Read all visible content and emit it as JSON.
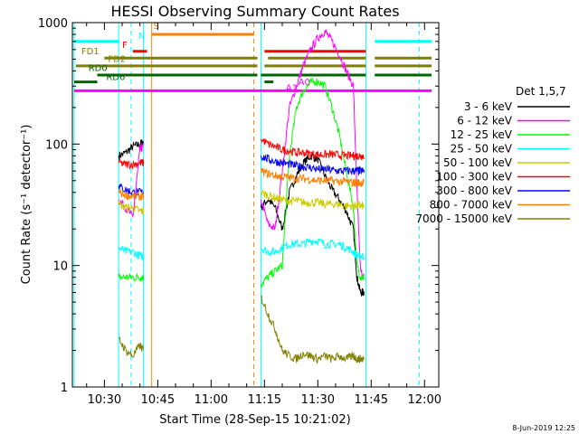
{
  "chart_data": {
    "type": "line",
    "title": "HESSI Observing Summary Count Rates",
    "ylabel": "Count Rate (s⁻¹ detector⁻¹)",
    "xlabel": "Start Time (28-Sep-15 10:21:02)",
    "yscale": "log",
    "ylim": [
      1,
      1000
    ],
    "xlim_minutes": [
      621,
      724
    ],
    "x_ticks": [
      {
        "t": 630,
        "label": "10:30"
      },
      {
        "t": 645,
        "label": "10:45"
      },
      {
        "t": 660,
        "label": "11:00"
      },
      {
        "t": 675,
        "label": "11:15"
      },
      {
        "t": 690,
        "label": "11:30"
      },
      {
        "t": 705,
        "label": "11:45"
      },
      {
        "t": 720,
        "label": "12:00"
      }
    ],
    "y_ticks": [
      {
        "v": 1,
        "label": "1"
      },
      {
        "v": 10,
        "label": "10"
      },
      {
        "v": 100,
        "label": "100"
      },
      {
        "v": 1000,
        "label": "1000"
      }
    ],
    "legend_title": "Det 1,5,7",
    "legend_position": "right",
    "series": [
      {
        "name": "3 - 6 keV",
        "color": "#000000",
        "points": [
          [
            634,
            80
          ],
          [
            636,
            85
          ],
          [
            638,
            95
          ],
          [
            640,
            100
          ],
          [
            641,
            105
          ],
          [
            674,
            30
          ],
          [
            676,
            35
          ],
          [
            678,
            30
          ],
          [
            680,
            20
          ],
          [
            682,
            40
          ],
          [
            684,
            55
          ],
          [
            686,
            70
          ],
          [
            688,
            80
          ],
          [
            690,
            75
          ],
          [
            692,
            55
          ],
          [
            694,
            42
          ],
          [
            696,
            35
          ],
          [
            698,
            28
          ],
          [
            700,
            20
          ],
          [
            701,
            8
          ],
          [
            702,
            6
          ],
          [
            703,
            6
          ]
        ]
      },
      {
        "name": "6 - 12 keV",
        "color": "#ff00ff",
        "points": [
          [
            634,
            35
          ],
          [
            636,
            30
          ],
          [
            638,
            25
          ],
          [
            640,
            90
          ],
          [
            641,
            95
          ],
          [
            674,
            35
          ],
          [
            676,
            22
          ],
          [
            678,
            20
          ],
          [
            680,
            60
          ],
          [
            682,
            200
          ],
          [
            684,
            300
          ],
          [
            686,
            450
          ],
          [
            688,
            600
          ],
          [
            690,
            750
          ],
          [
            692,
            850
          ],
          [
            694,
            700
          ],
          [
            696,
            550
          ],
          [
            698,
            400
          ],
          [
            700,
            300
          ],
          [
            701,
            40
          ],
          [
            702,
            9
          ],
          [
            703,
            8
          ]
        ]
      },
      {
        "name": "12 - 25 keV",
        "color": "#00ff00",
        "points": [
          [
            634,
            8
          ],
          [
            636,
            8
          ],
          [
            638,
            8
          ],
          [
            640,
            8
          ],
          [
            641,
            8
          ],
          [
            674,
            7
          ],
          [
            676,
            8
          ],
          [
            678,
            9
          ],
          [
            680,
            10
          ],
          [
            682,
            80
          ],
          [
            684,
            200
          ],
          [
            686,
            280
          ],
          [
            688,
            320
          ],
          [
            690,
            330
          ],
          [
            692,
            300
          ],
          [
            694,
            200
          ],
          [
            696,
            120
          ],
          [
            698,
            60
          ],
          [
            700,
            30
          ],
          [
            701,
            10
          ],
          [
            702,
            8
          ],
          [
            703,
            8
          ]
        ]
      },
      {
        "name": "25 - 50 keV",
        "color": "#00ffff",
        "points": [
          [
            634,
            14
          ],
          [
            636,
            13
          ],
          [
            638,
            13
          ],
          [
            640,
            12
          ],
          [
            641,
            12
          ],
          [
            674,
            14
          ],
          [
            676,
            13
          ],
          [
            678,
            13
          ],
          [
            680,
            14
          ],
          [
            682,
            15
          ],
          [
            684,
            15
          ],
          [
            686,
            15
          ],
          [
            688,
            16
          ],
          [
            690,
            16
          ],
          [
            692,
            15
          ],
          [
            694,
            15
          ],
          [
            696,
            15
          ],
          [
            698,
            14
          ],
          [
            700,
            13
          ],
          [
            701,
            12
          ],
          [
            702,
            12
          ],
          [
            703,
            12
          ]
        ]
      },
      {
        "name": "50 - 100 keV",
        "color": "#cccc00",
        "points": [
          [
            634,
            32
          ],
          [
            636,
            30
          ],
          [
            638,
            30
          ],
          [
            640,
            28
          ],
          [
            641,
            28
          ],
          [
            674,
            40
          ],
          [
            676,
            38
          ],
          [
            678,
            36
          ],
          [
            680,
            35
          ],
          [
            682,
            34
          ],
          [
            684,
            34
          ],
          [
            686,
            33
          ],
          [
            688,
            33
          ],
          [
            690,
            33
          ],
          [
            692,
            32
          ],
          [
            694,
            32
          ],
          [
            696,
            32
          ],
          [
            698,
            31
          ],
          [
            700,
            31
          ],
          [
            701,
            31
          ],
          [
            702,
            31
          ],
          [
            703,
            31
          ]
        ]
      },
      {
        "name": "100 - 300 keV",
        "color": "#ff0000",
        "points": [
          [
            634,
            70
          ],
          [
            636,
            68
          ],
          [
            638,
            68
          ],
          [
            640,
            70
          ],
          [
            641,
            70
          ],
          [
            674,
            110
          ],
          [
            676,
            100
          ],
          [
            678,
            95
          ],
          [
            680,
            90
          ],
          [
            682,
            88
          ],
          [
            684,
            85
          ],
          [
            686,
            85
          ],
          [
            688,
            83
          ],
          [
            690,
            82
          ],
          [
            692,
            82
          ],
          [
            694,
            82
          ],
          [
            696,
            81
          ],
          [
            698,
            80
          ],
          [
            700,
            80
          ],
          [
            701,
            80
          ],
          [
            702,
            80
          ],
          [
            703,
            80
          ]
        ]
      },
      {
        "name": "300 - 800 keV",
        "color": "#0000ff",
        "points": [
          [
            634,
            45
          ],
          [
            636,
            42
          ],
          [
            638,
            40
          ],
          [
            640,
            40
          ],
          [
            641,
            40
          ],
          [
            674,
            80
          ],
          [
            676,
            75
          ],
          [
            678,
            72
          ],
          [
            680,
            70
          ],
          [
            682,
            68
          ],
          [
            684,
            66
          ],
          [
            686,
            65
          ],
          [
            688,
            64
          ],
          [
            690,
            62
          ],
          [
            692,
            62
          ],
          [
            694,
            61
          ],
          [
            696,
            60
          ],
          [
            698,
            60
          ],
          [
            700,
            60
          ],
          [
            701,
            60
          ],
          [
            702,
            60
          ],
          [
            703,
            60
          ]
        ]
      },
      {
        "name": "800 - 7000 keV",
        "color": "#ff8000",
        "points": [
          [
            634,
            40
          ],
          [
            636,
            38
          ],
          [
            638,
            37
          ],
          [
            640,
            37
          ],
          [
            641,
            37
          ],
          [
            674,
            60
          ],
          [
            676,
            57
          ],
          [
            678,
            55
          ],
          [
            680,
            54
          ],
          [
            682,
            53
          ],
          [
            684,
            52
          ],
          [
            686,
            52
          ],
          [
            688,
            51
          ],
          [
            690,
            50
          ],
          [
            692,
            50
          ],
          [
            694,
            50
          ],
          [
            696,
            49
          ],
          [
            698,
            49
          ],
          [
            700,
            48
          ],
          [
            701,
            48
          ],
          [
            702,
            48
          ],
          [
            703,
            48
          ]
        ]
      },
      {
        "name": "7000 - 15000 keV",
        "color": "#808000",
        "points": [
          [
            634,
            2.5
          ],
          [
            636,
            2.0
          ],
          [
            638,
            1.8
          ],
          [
            640,
            2.2
          ],
          [
            641,
            2.0
          ],
          [
            674,
            5.5
          ],
          [
            676,
            4.0
          ],
          [
            678,
            3.0
          ],
          [
            680,
            2.0
          ],
          [
            682,
            1.8
          ],
          [
            684,
            1.7
          ],
          [
            686,
            1.9
          ],
          [
            688,
            1.8
          ],
          [
            690,
            1.7
          ],
          [
            692,
            1.8
          ],
          [
            694,
            1.7
          ],
          [
            696,
            1.8
          ],
          [
            698,
            1.7
          ],
          [
            700,
            1.8
          ],
          [
            701,
            1.7
          ],
          [
            702,
            1.7
          ],
          [
            703,
            1.7
          ]
        ]
      }
    ],
    "vertical_markers": [
      {
        "t": 621.5,
        "color": "#00ffff",
        "dash": false
      },
      {
        "t": 634.0,
        "color": "#00ffff",
        "dash": false
      },
      {
        "t": 637.5,
        "color": "#00ffff",
        "dash": true
      },
      {
        "t": 641.0,
        "color": "#00ffff",
        "dash": false
      },
      {
        "t": 643.3,
        "color": "#ff8000",
        "dash": false
      },
      {
        "t": 672.0,
        "color": "#ff8000",
        "dash": true
      },
      {
        "t": 674.0,
        "color": "#00ffff",
        "dash": false
      },
      {
        "t": 703.5,
        "color": "#00ffff",
        "dash": false
      },
      {
        "t": 718.5,
        "color": "#00ffff",
        "dash": true
      }
    ],
    "flag_bars": [
      {
        "color": "#00ffff",
        "v": 700,
        "segments": [
          [
            621.5,
            634.0
          ],
          [
            706,
            722
          ]
        ]
      },
      {
        "color": "#ff8000",
        "v": 800,
        "segments": [
          [
            643.3,
            672.0
          ]
        ]
      },
      {
        "color": "#ff0000",
        "v": 580,
        "segments": [
          [
            638,
            642
          ],
          [
            675,
            703.5
          ]
        ]
      },
      {
        "color": "#808000",
        "v": 510,
        "segments": [
          [
            630,
            673
          ],
          [
            676,
            703.5
          ],
          [
            706,
            722
          ]
        ]
      },
      {
        "color": "#808000",
        "v": 440,
        "segments": [
          [
            622,
            673
          ],
          [
            675,
            703.5
          ],
          [
            706,
            722
          ]
        ]
      },
      {
        "color": "#006400",
        "v": 370,
        "segments": [
          [
            628,
            673
          ],
          [
            674,
            703.5
          ],
          [
            706,
            722
          ]
        ]
      },
      {
        "color": "#006400",
        "v": 325,
        "segments": [
          [
            621.5,
            628
          ],
          [
            675,
            677.5
          ]
        ]
      },
      {
        "color": "#ff00ff",
        "v": 275,
        "segments": [
          [
            621.5,
            722
          ]
        ]
      }
    ],
    "flag_labels": [
      {
        "text": "N",
        "t": 639.5,
        "v": 700,
        "color": "#00ffff"
      },
      {
        "text": "S",
        "t": 643.8,
        "v": 840,
        "color": "#ff8000"
      },
      {
        "text": "F",
        "t": 635.0,
        "v": 590,
        "color": "#ff0000"
      },
      {
        "text": "FD1",
        "t": 623.5,
        "v": 520,
        "color": "#808000"
      },
      {
        "text": "FD2",
        "t": 631.0,
        "v": 450,
        "color": "#808000"
      },
      {
        "text": "RD0",
        "t": 625.5,
        "v": 380,
        "color": "#006400"
      },
      {
        "text": "RD6",
        "t": 630.5,
        "v": 320,
        "color": "#006400"
      },
      {
        "text": "A1",
        "t": 681.0,
        "v": 260,
        "color": "#ff00ff"
      },
      {
        "text": "A0",
        "t": 684.5,
        "v": 290,
        "color": "#ff00ff"
      }
    ]
  },
  "footer": {
    "timestamp": "8-Jun-2019 12:25"
  }
}
